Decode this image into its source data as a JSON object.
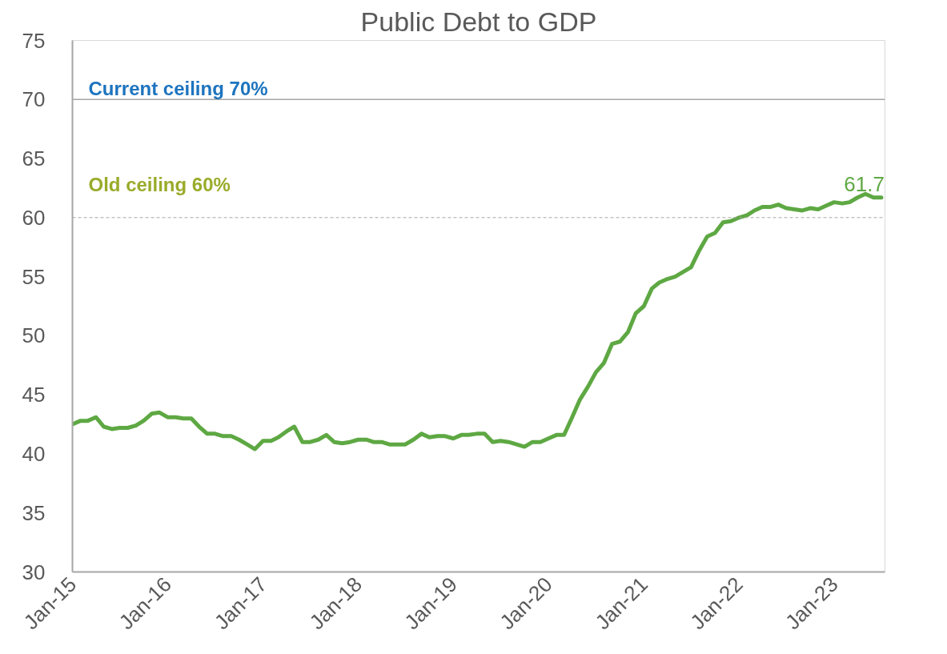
{
  "chart_data": {
    "type": "line",
    "title": "Public Debt to GDP",
    "x": [
      "2015-01",
      "2015-02",
      "2015-03",
      "2015-04",
      "2015-05",
      "2015-06",
      "2015-07",
      "2015-08",
      "2015-09",
      "2015-10",
      "2015-11",
      "2015-12",
      "2016-01",
      "2016-02",
      "2016-03",
      "2016-04",
      "2016-05",
      "2016-06",
      "2016-07",
      "2016-08",
      "2016-09",
      "2016-10",
      "2016-11",
      "2016-12",
      "2017-01",
      "2017-02",
      "2017-03",
      "2017-04",
      "2017-05",
      "2017-06",
      "2017-07",
      "2017-08",
      "2017-09",
      "2017-10",
      "2017-11",
      "2017-12",
      "2018-01",
      "2018-02",
      "2018-03",
      "2018-04",
      "2018-05",
      "2018-06",
      "2018-07",
      "2018-08",
      "2018-09",
      "2018-10",
      "2018-11",
      "2018-12",
      "2019-01",
      "2019-02",
      "2019-03",
      "2019-04",
      "2019-05",
      "2019-06",
      "2019-07",
      "2019-08",
      "2019-09",
      "2019-10",
      "2019-11",
      "2019-12",
      "2020-01",
      "2020-02",
      "2020-03",
      "2020-04",
      "2020-05",
      "2020-06",
      "2020-07",
      "2020-08",
      "2020-09",
      "2020-10",
      "2020-11",
      "2020-12",
      "2021-01",
      "2021-02",
      "2021-03",
      "2021-04",
      "2021-05",
      "2021-06",
      "2021-07",
      "2021-08",
      "2021-09",
      "2021-10",
      "2021-11",
      "2021-12",
      "2022-01",
      "2022-02",
      "2022-03",
      "2022-04",
      "2022-05",
      "2022-06",
      "2022-07",
      "2022-08",
      "2022-09",
      "2022-10",
      "2022-11",
      "2022-12",
      "2023-01",
      "2023-02",
      "2023-03",
      "2023-04",
      "2023-05",
      "2023-06",
      "2023-07"
    ],
    "series": [
      {
        "color": "#5ea843",
        "values": [
          42.5,
          42.8,
          42.8,
          43.1,
          42.3,
          42.1,
          42.2,
          42.2,
          42.4,
          42.8,
          43.4,
          43.5,
          43.1,
          43.1,
          43.0,
          43.0,
          42.3,
          41.7,
          41.7,
          41.5,
          41.5,
          41.2,
          40.8,
          40.4,
          41.1,
          41.1,
          41.4,
          41.9,
          42.3,
          41.0,
          41.0,
          41.2,
          41.6,
          41.0,
          40.9,
          41.0,
          41.2,
          41.2,
          41.0,
          41.0,
          40.8,
          40.8,
          40.8,
          41.2,
          41.7,
          41.4,
          41.5,
          41.5,
          41.3,
          41.6,
          41.6,
          41.7,
          41.7,
          41.0,
          41.1,
          41.0,
          40.8,
          40.6,
          41.0,
          41.0,
          41.3,
          41.6,
          41.6,
          43.1,
          44.6,
          45.7,
          46.9,
          47.7,
          49.3,
          49.5,
          50.3,
          51.9,
          52.5,
          54.0,
          54.5,
          54.8,
          55.0,
          55.4,
          55.8,
          57.2,
          58.4,
          58.7,
          59.6,
          59.7,
          60.0,
          60.2,
          60.6,
          60.9,
          60.9,
          61.1,
          60.8,
          60.7,
          60.6,
          60.8,
          60.7,
          61.0,
          61.3,
          61.2,
          61.3,
          61.7,
          62.0,
          61.7,
          61.7
        ],
        "value_labels": [
          null,
          null,
          null,
          null,
          null,
          null,
          null,
          null,
          null,
          null,
          null,
          null,
          null,
          null,
          null,
          null,
          null,
          null,
          null,
          null,
          null,
          null,
          null,
          null,
          null,
          null,
          null,
          null,
          null,
          null,
          null,
          null,
          null,
          null,
          null,
          null,
          null,
          null,
          null,
          null,
          null,
          null,
          null,
          null,
          null,
          null,
          null,
          null,
          null,
          null,
          null,
          null,
          null,
          null,
          null,
          null,
          null,
          null,
          null,
          null,
          null,
          null,
          null,
          null,
          null,
          null,
          null,
          null,
          null,
          null,
          null,
          null,
          null,
          null,
          null,
          null,
          null,
          null,
          null,
          null,
          null,
          null,
          null,
          null,
          null,
          null,
          null,
          null,
          null,
          null,
          null,
          null,
          null,
          null,
          null,
          null,
          null,
          null,
          null,
          null,
          null,
          null,
          "61.7"
        ]
      }
    ],
    "xlim": [
      "2015-01-01",
      "2023-07-15"
    ],
    "xticks": [
      {
        "value": "2015-01",
        "label": "Jan-15"
      },
      {
        "value": "2016-01",
        "label": "Jan-16"
      },
      {
        "value": "2017-01",
        "label": "Jan-17"
      },
      {
        "value": "2018-01",
        "label": "Jan-18"
      },
      {
        "value": "2019-01",
        "label": "Jan-19"
      },
      {
        "value": "2020-01",
        "label": "Jan-20"
      },
      {
        "value": "2021-01",
        "label": "Jan-21"
      },
      {
        "value": "2022-01",
        "label": "Jan-22"
      },
      {
        "value": "2023-01",
        "label": "Jan-23"
      }
    ],
    "ylim": [
      30,
      75
    ],
    "yticks": [
      30,
      35,
      40,
      45,
      50,
      55,
      60,
      65,
      70,
      75
    ],
    "ref_lines": [
      {
        "axis": "y",
        "value": 70,
        "label": "Current ceiling 70%",
        "color": "#a6a6a6",
        "line_style": "solid"
      },
      {
        "axis": "y",
        "value": 60,
        "label": "Old ceiling 60%",
        "color": "#a6a6a6",
        "line_style": "dashed"
      }
    ],
    "grid": false,
    "marker": "none",
    "line_style": "solid"
  }
}
